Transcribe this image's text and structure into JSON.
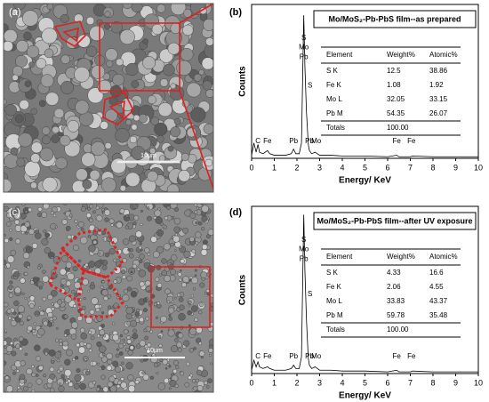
{
  "panels": [
    {
      "label": "(a)",
      "scale_bar": "10μm"
    },
    {
      "label": "(b)",
      "title": "Mo/MoS₂-Pb-PbS film--as prepared",
      "x_label": "Energy/ KeV",
      "y_label": "Counts",
      "xlim": [
        0,
        10
      ],
      "ylim": [
        0,
        100
      ],
      "xticks": [
        0,
        1,
        2,
        3,
        4,
        5,
        6,
        7,
        8,
        9,
        10
      ],
      "x": [
        0,
        0.1,
        0.2,
        0.28,
        0.35,
        0.5,
        0.7,
        0.8,
        1.0,
        1.5,
        1.75,
        1.85,
        1.95,
        2.1,
        2.2,
        2.3,
        2.35,
        2.42,
        2.5,
        2.55,
        2.65,
        2.8,
        2.9,
        3.0,
        3.5,
        4,
        5,
        6,
        6.4,
        6.5,
        7,
        7.1,
        8,
        9,
        10
      ],
      "values": [
        2,
        10,
        4,
        9,
        4,
        3,
        5,
        3,
        2,
        2,
        3,
        6,
        3,
        3,
        10,
        93,
        60,
        30,
        9,
        5,
        3,
        4,
        3,
        2,
        2,
        1.5,
        1.5,
        1,
        2,
        1,
        1,
        1.5,
        1,
        1,
        1
      ],
      "peak_labels": [
        "S",
        "Mo",
        "Pb",
        "S",
        "C",
        "Fe",
        "Pb",
        "Pb",
        "Mo",
        "Fe",
        "Fe"
      ],
      "table": {
        "header": [
          "Element",
          "Weight%",
          "Atomic%"
        ],
        "rows": [
          [
            "S K",
            "12.5",
            "38.86"
          ],
          [
            "Fe K",
            "1.08",
            "1.92"
          ],
          [
            "Mo L",
            "32.05",
            "33.15"
          ],
          [
            "Pb M",
            "54.35",
            "26.07"
          ],
          [
            "Totals",
            "100.00",
            ""
          ]
        ]
      }
    },
    {
      "label": "(c)",
      "scale_bar": "10μm"
    },
    {
      "label": "(d)",
      "title": "Mo/MoS₂-Pb-PbS film--after UV exposure",
      "x_label": "Energy/ KeV",
      "y_label": "Counts",
      "xlim": [
        0,
        10
      ],
      "ylim": [
        0,
        100
      ],
      "xticks": [
        0,
        1,
        2,
        3,
        4,
        5,
        6,
        7,
        8,
        9,
        10
      ],
      "x": [
        0,
        0.1,
        0.2,
        0.28,
        0.35,
        0.5,
        0.7,
        0.8,
        1.0,
        1.5,
        1.75,
        1.85,
        1.95,
        2.1,
        2.2,
        2.3,
        2.35,
        2.42,
        2.5,
        2.55,
        2.65,
        2.8,
        2.9,
        3.0,
        3.5,
        4,
        5,
        6,
        6.4,
        6.5,
        7,
        7.1,
        8,
        9,
        10
      ],
      "values": [
        2,
        8,
        4,
        7,
        4,
        3,
        4,
        3,
        2,
        2,
        3,
        5,
        3,
        3,
        10,
        95,
        62,
        32,
        9,
        5,
        3,
        4,
        3,
        2,
        2,
        1.5,
        1.5,
        1,
        2,
        1,
        1,
        1.5,
        1,
        1,
        1
      ],
      "peak_labels": [
        "S",
        "Mo",
        "Pb",
        "S",
        "C",
        "Fe",
        "Pb",
        "Pb",
        "Mo",
        "Fe",
        "Fe"
      ],
      "table": {
        "header": [
          "Element",
          "Weight%",
          "Atomic%"
        ],
        "rows": [
          [
            "S K",
            "4.33",
            "16.6"
          ],
          [
            "Fe K",
            "2.06",
            "4.55"
          ],
          [
            "Mo L",
            "33.83",
            "43.37"
          ],
          [
            "Pb M",
            "59.78",
            "35.48"
          ],
          [
            "Totals",
            "100.00",
            ""
          ]
        ]
      }
    }
  ]
}
